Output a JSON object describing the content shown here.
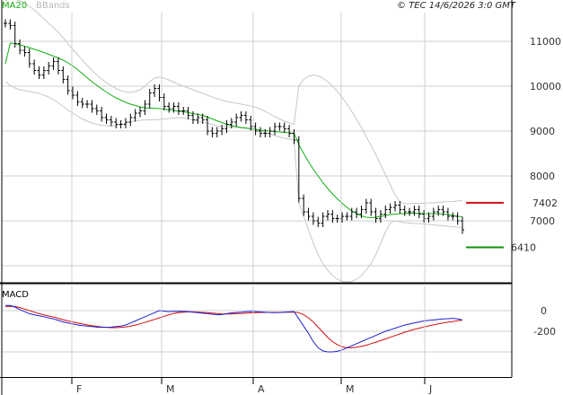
{
  "header": {
    "legend_ma20": "MA20",
    "legend_bbands": "BBands",
    "copyright": "© TEC 14/6/2026 3:0 GMT"
  },
  "colors": {
    "ma20": "#10b010",
    "bbands": "#c8c8c8",
    "price": "#000000",
    "macd": "#1f1fd0",
    "signal": "#d01010",
    "resistance": "#d01010",
    "support": "#109010"
  },
  "chart_data": [
    {
      "type": "line",
      "title": "",
      "xlabel": "",
      "ylabel": "",
      "ylim": [
        5000,
        12000
      ],
      "x_ticks": [
        "F",
        "M",
        "A",
        "M",
        "J"
      ],
      "y_ticks": [
        {
          "label": "11000",
          "value": 11000
        },
        {
          "label": "10000",
          "value": 10000
        },
        {
          "label": "9000",
          "value": 9000
        },
        {
          "label": "8000",
          "value": 8000
        },
        {
          "label": "7000",
          "value": 7000
        }
      ],
      "grid": true,
      "levels": [
        {
          "name": "resistance",
          "label": "7402",
          "value": 7402
        },
        {
          "name": "support",
          "label": "6410",
          "value": 6410
        }
      ],
      "series": [
        {
          "key": "price",
          "values": [
            11400,
            11350,
            10950,
            10800,
            10750,
            10500,
            10350,
            10250,
            10350,
            10450,
            10550,
            10350,
            10150,
            9900,
            9800,
            9650,
            9600,
            9600,
            9500,
            9450,
            9300,
            9250,
            9200,
            9150,
            9150,
            9200,
            9300,
            9400,
            9450,
            9600,
            9850,
            9950,
            9750,
            9550,
            9500,
            9550,
            9450,
            9450,
            9350,
            9250,
            9300,
            9250,
            9000,
            8950,
            9000,
            9050,
            9150,
            9200,
            9300,
            9350,
            9250,
            9100,
            9000,
            8950,
            8950,
            9000,
            9100,
            9100,
            9050,
            8950,
            8800,
            7500,
            7200,
            7100,
            7000,
            6950,
            7100,
            7150,
            7050,
            7050,
            7100,
            7100,
            7200,
            7150,
            7250,
            7400,
            7200,
            7050,
            7150,
            7250,
            7300,
            7350,
            7250,
            7200,
            7200,
            7250,
            7150,
            7050,
            7100,
            7200,
            7250,
            7200,
            7100,
            7100,
            7000,
            6800
          ]
        },
        {
          "key": "ma20",
          "values": [
            10500,
            10960,
            10950,
            10920,
            10890,
            10860,
            10820,
            10790,
            10750,
            10710,
            10670,
            10630,
            10580,
            10520,
            10450,
            10370,
            10280,
            10190,
            10100,
            10020,
            9940,
            9870,
            9800,
            9740,
            9690,
            9640,
            9600,
            9570,
            9540,
            9520,
            9510,
            9510,
            9500,
            9490,
            9470,
            9460,
            9440,
            9430,
            9410,
            9390,
            9370,
            9350,
            9310,
            9270,
            9230,
            9190,
            9150,
            9120,
            9100,
            9080,
            9070,
            9050,
            9040,
            9020,
            9010,
            9000,
            8990,
            8980,
            8970,
            8960,
            8950,
            8700,
            8500,
            8320,
            8150,
            8000,
            7850,
            7720,
            7600,
            7490,
            7390,
            7300,
            7220,
            7160,
            7110,
            7080,
            7070,
            7080,
            7100,
            7120,
            7140,
            7150,
            7160,
            7160,
            7170,
            7170,
            7170,
            7160,
            7160,
            7160,
            7160,
            7150,
            7140,
            7120,
            7100,
            7090
          ]
        },
        {
          "key": "bbands_upper",
          "values": [
            11900,
            11950,
            11930,
            11900,
            11850,
            11780,
            11700,
            11600,
            11500,
            11400,
            11300,
            11200,
            11080,
            10950,
            10820,
            10700,
            10580,
            10460,
            10350,
            10250,
            10160,
            10080,
            10010,
            9950,
            9900,
            9870,
            9860,
            9880,
            9920,
            10000,
            10100,
            10180,
            10200,
            10180,
            10140,
            10090,
            10040,
            10000,
            9960,
            9920,
            9880,
            9840,
            9800,
            9760,
            9720,
            9690,
            9660,
            9640,
            9620,
            9600,
            9580,
            9560,
            9530,
            9490,
            9440,
            9380,
            9320,
            9270,
            9220,
            9180,
            9150,
            10000,
            10150,
            10220,
            10250,
            10230,
            10180,
            10100,
            10000,
            9880,
            9750,
            9600,
            9440,
            9260,
            9080,
            8880,
            8680,
            8470,
            8250,
            8030,
            7800,
            7580,
            7420,
            7380,
            7380,
            7390,
            7390,
            7390,
            7400,
            7400,
            7410,
            7420,
            7430,
            7430,
            7440,
            7450
          ]
        },
        {
          "key": "bbands_lower",
          "values": [
            10100,
            10020,
            9960,
            9920,
            9900,
            9880,
            9860,
            9840,
            9800,
            9760,
            9700,
            9630,
            9550,
            9470,
            9400,
            9330,
            9270,
            9220,
            9180,
            9150,
            9130,
            9120,
            9110,
            9120,
            9140,
            9170,
            9200,
            9230,
            9240,
            9250,
            9250,
            9250,
            9260,
            9270,
            9280,
            9290,
            9300,
            9290,
            9270,
            9250,
            9220,
            9200,
            9180,
            9150,
            9120,
            9100,
            9090,
            9080,
            9080,
            9070,
            9060,
            9050,
            9030,
            9000,
            8970,
            8940,
            8900,
            8870,
            8840,
            8820,
            8800,
            7400,
            7100,
            6800,
            6500,
            6250,
            6050,
            5900,
            5780,
            5700,
            5650,
            5640,
            5650,
            5700,
            5780,
            5900,
            6050,
            6250,
            6500,
            6750,
            6950,
            7000,
            6980,
            6960,
            6950,
            6940,
            6940,
            6930,
            6920,
            6910,
            6900,
            6890,
            6880,
            6870,
            6860,
            6850
          ]
        }
      ]
    },
    {
      "type": "line",
      "title": "MACD",
      "xlabel": "",
      "ylabel": "",
      "ylim": [
        -450,
        100
      ],
      "y_ticks": [
        {
          "label": "0",
          "value": 0
        },
        {
          "label": "-200",
          "value": -200
        }
      ],
      "grid": true,
      "series": [
        {
          "key": "macd",
          "values": [
            50,
            50,
            35,
            10,
            -10,
            -30,
            -40,
            -50,
            -58,
            -70,
            -80,
            -95,
            -110,
            -120,
            -130,
            -138,
            -145,
            -150,
            -155,
            -160,
            -162,
            -162,
            -160,
            -155,
            -150,
            -140,
            -120,
            -100,
            -80,
            -60,
            -40,
            -20,
            0,
            -5,
            -10,
            -8,
            -6,
            -8,
            -10,
            -15,
            -20,
            -25,
            -30,
            -35,
            -40,
            -38,
            -30,
            -22,
            -18,
            -15,
            -10,
            -8,
            -10,
            -12,
            -15,
            -18,
            -20,
            -18,
            -15,
            -12,
            -10,
            -80,
            -150,
            -220,
            -300,
            -360,
            -390,
            -400,
            -400,
            -395,
            -380,
            -360,
            -340,
            -320,
            -300,
            -280,
            -260,
            -240,
            -220,
            -200,
            -185,
            -170,
            -155,
            -140,
            -130,
            -120,
            -110,
            -100,
            -95,
            -90,
            -85,
            -80,
            -78,
            -75,
            -80,
            -90
          ]
        },
        {
          "key": "signal",
          "values": [
            40,
            42,
            40,
            30,
            15,
            0,
            -15,
            -30,
            -42,
            -52,
            -62,
            -75,
            -88,
            -100,
            -110,
            -120,
            -130,
            -138,
            -145,
            -152,
            -158,
            -162,
            -165,
            -165,
            -162,
            -158,
            -150,
            -140,
            -128,
            -115,
            -100,
            -85,
            -70,
            -55,
            -40,
            -28,
            -20,
            -15,
            -12,
            -12,
            -14,
            -17,
            -20,
            -24,
            -28,
            -32,
            -33,
            -32,
            -30,
            -28,
            -25,
            -22,
            -20,
            -18,
            -17,
            -17,
            -17,
            -17,
            -16,
            -15,
            -14,
            -20,
            -40,
            -70,
            -110,
            -160,
            -210,
            -260,
            -300,
            -330,
            -350,
            -360,
            -360,
            -355,
            -345,
            -335,
            -320,
            -305,
            -290,
            -275,
            -258,
            -242,
            -226,
            -210,
            -196,
            -182,
            -170,
            -158,
            -148,
            -138,
            -128,
            -120,
            -112,
            -105,
            -98,
            -92
          ]
        }
      ]
    }
  ]
}
